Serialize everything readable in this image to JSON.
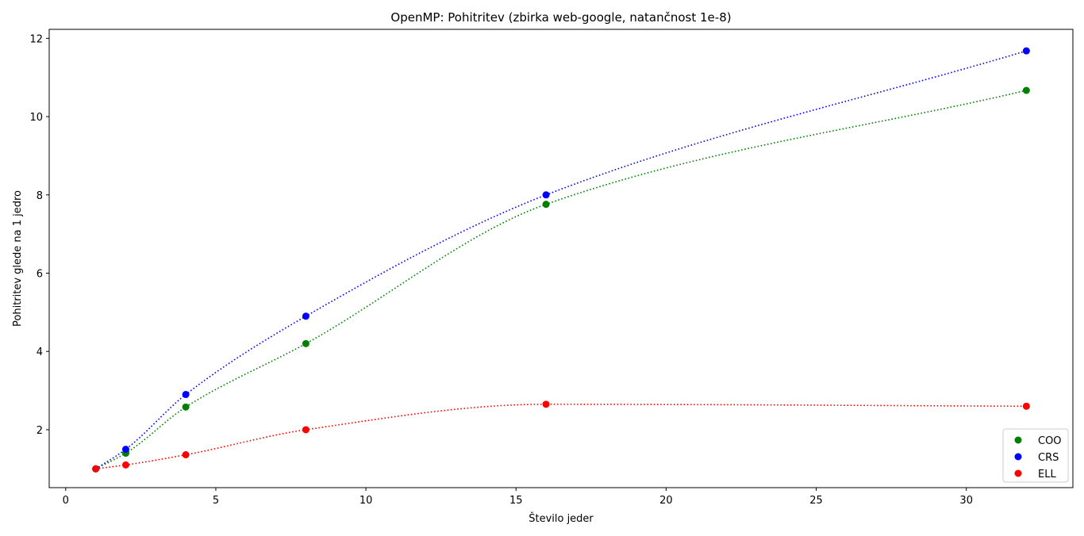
{
  "chart_data": {
    "type": "scatter",
    "title": "OpenMP: Pohitritev (zbirka web-google, natančnost 1e-8)",
    "xlabel": "Število jeder",
    "ylabel": "Pohitritev glede na 1 jedro",
    "xlim": [
      -0.55,
      33.55
    ],
    "ylim": [
      0.52,
      12.23
    ],
    "xticks": [
      0,
      5,
      10,
      15,
      20,
      25,
      30
    ],
    "yticks": [
      2,
      4,
      6,
      8,
      10,
      12
    ],
    "grid": false,
    "legend_position": "lower-right",
    "x": [
      1,
      2,
      4,
      8,
      16,
      32
    ],
    "series": [
      {
        "name": "COO",
        "color": "#008000",
        "values": [
          1.0,
          1.4,
          2.58,
          4.2,
          7.76,
          10.67
        ]
      },
      {
        "name": "CRS",
        "color": "#0000ff",
        "values": [
          1.0,
          1.5,
          2.9,
          4.9,
          8.0,
          11.68
        ]
      },
      {
        "name": "ELL",
        "color": "#ff0000",
        "values": [
          1.0,
          1.1,
          1.36,
          2.0,
          2.65,
          2.6
        ]
      }
    ]
  }
}
